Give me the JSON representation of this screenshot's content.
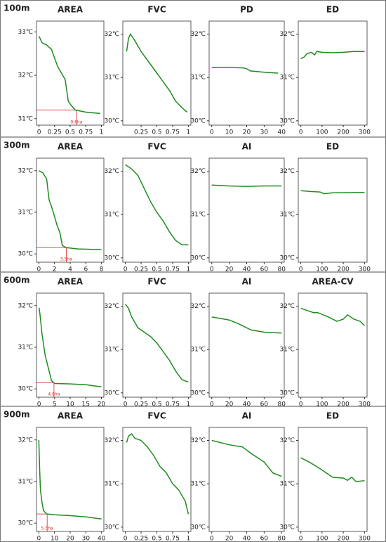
{
  "rows": [
    "100m",
    "300m",
    "600m",
    "900m"
  ],
  "chart_data": [
    {
      "type": "line",
      "title": "AREA",
      "x": [
        0,
        0.05,
        0.12,
        0.2,
        0.3,
        0.42,
        0.47,
        0.52,
        0.58,
        0.75,
        0.98
      ],
      "values": [
        32.9,
        32.75,
        32.7,
        32.6,
        32.2,
        31.9,
        31.4,
        31.3,
        31.2,
        31.15,
        31.12
      ],
      "color": "#1e8c1e",
      "xlim": [
        -0.04,
        1.04
      ],
      "ylim": [
        30.85,
        33.25
      ],
      "xticks": [
        0,
        0.25,
        0.5,
        0.75,
        1
      ],
      "yticks": [
        {
          "value": 31,
          "label": "31℃"
        },
        {
          "value": 32,
          "label": "32℃"
        },
        {
          "value": 33,
          "label": "33℃"
        }
      ],
      "annotations": [
        {
          "x": 0.6,
          "y": 31.2,
          "label": "0.6ha",
          "color": "#e02020"
        }
      ]
    },
    {
      "type": "line",
      "title": "FVC",
      "x": [
        0.02,
        0.05,
        0.08,
        0.15,
        0.25,
        0.35,
        0.5,
        0.6,
        0.7,
        0.8,
        0.9,
        0.98
      ],
      "values": [
        31.6,
        31.9,
        32.0,
        31.85,
        31.6,
        31.4,
        31.1,
        30.9,
        30.7,
        30.45,
        30.3,
        30.2
      ],
      "color": "#1e8c1e",
      "xlim": [
        -0.04,
        1.04
      ],
      "ylim": [
        29.9,
        32.3
      ],
      "xticks": [
        0.25,
        0.5,
        0.75,
        1
      ],
      "yticks": [
        {
          "value": 30,
          "label": "30℃"
        },
        {
          "value": 31,
          "label": "31℃"
        },
        {
          "value": 32,
          "label": "32℃"
        }
      ]
    },
    {
      "type": "line",
      "title": "PD",
      "x": [
        0,
        10,
        18,
        20,
        22,
        30,
        38
      ],
      "values": [
        31.23,
        31.23,
        31.22,
        31.2,
        31.15,
        31.12,
        31.1
      ],
      "color": "#1e8c1e",
      "xlim": [
        -1.5,
        41.5
      ],
      "ylim": [
        29.9,
        32.3
      ],
      "xticks": [
        0,
        10,
        20,
        30,
        40
      ],
      "yticks": [
        {
          "value": 30,
          "label": "30℃"
        },
        {
          "value": 31,
          "label": "31℃"
        },
        {
          "value": 32,
          "label": "32℃"
        }
      ]
    },
    {
      "type": "line",
      "title": "ED",
      "x": [
        0,
        15,
        30,
        50,
        65,
        75,
        100,
        150,
        200,
        250,
        300
      ],
      "values": [
        31.43,
        31.47,
        31.55,
        31.58,
        31.52,
        31.6,
        31.58,
        31.57,
        31.58,
        31.6,
        31.6
      ],
      "color": "#1e8c1e",
      "xlim": [
        -12,
        312
      ],
      "ylim": [
        29.9,
        32.3
      ],
      "xticks": [
        0,
        100,
        200,
        300
      ],
      "yticks": [
        {
          "value": 30,
          "label": "30℃"
        },
        {
          "value": 31,
          "label": "31℃"
        },
        {
          "value": 32,
          "label": "32℃"
        }
      ]
    },
    {
      "type": "line",
      "title": "AREA",
      "x": [
        0,
        0.5,
        1,
        1.3,
        1.6,
        2,
        2.3,
        2.7,
        3,
        3.5,
        5,
        8
      ],
      "values": [
        32.0,
        31.95,
        31.8,
        31.3,
        31.15,
        30.9,
        30.7,
        30.5,
        30.2,
        30.15,
        30.12,
        30.1
      ],
      "color": "#1e8c1e",
      "xlim": [
        -0.3,
        8.3
      ],
      "ylim": [
        29.8,
        32.3
      ],
      "xticks": [
        0,
        2,
        4,
        6,
        8
      ],
      "yticks": [
        {
          "value": 30,
          "label": "30℃"
        },
        {
          "value": 31,
          "label": "31℃"
        },
        {
          "value": 32,
          "label": "32℃"
        }
      ],
      "annotations": [
        {
          "x": 3.5,
          "y": 30.15,
          "label": "3.5ha",
          "color": "#e02020"
        }
      ]
    },
    {
      "type": "line",
      "title": "FVC",
      "x": [
        0,
        0.1,
        0.2,
        0.3,
        0.4,
        0.5,
        0.6,
        0.7,
        0.8,
        0.9,
        1
      ],
      "values": [
        32.15,
        32.05,
        31.9,
        31.6,
        31.3,
        31.05,
        30.85,
        30.6,
        30.4,
        30.3,
        30.3
      ],
      "color": "#1e8c1e",
      "xlim": [
        -0.04,
        1.04
      ],
      "ylim": [
        29.9,
        32.3
      ],
      "xticks": [
        0,
        0.25,
        0.5,
        0.75,
        1
      ],
      "yticks": [
        {
          "value": 30,
          "label": "30℃"
        },
        {
          "value": 31,
          "label": "31℃"
        },
        {
          "value": 32,
          "label": "32℃"
        }
      ]
    },
    {
      "type": "line",
      "title": "AI",
      "x": [
        0,
        20,
        40,
        60,
        80
      ],
      "values": [
        31.68,
        31.66,
        31.65,
        31.66,
        31.66
      ],
      "color": "#1e8c1e",
      "xlim": [
        -3,
        83
      ],
      "ylim": [
        29.9,
        32.3
      ],
      "xticks": [
        0,
        20,
        40,
        60,
        80
      ],
      "yticks": [
        {
          "value": 30,
          "label": "30℃"
        },
        {
          "value": 31,
          "label": "31℃"
        },
        {
          "value": 32,
          "label": "32℃"
        }
      ]
    },
    {
      "type": "line",
      "title": "ED",
      "x": [
        0,
        50,
        90,
        110,
        150,
        300
      ],
      "values": [
        31.55,
        31.53,
        31.52,
        31.48,
        31.5,
        31.51
      ],
      "color": "#1e8c1e",
      "xlim": [
        -12,
        312
      ],
      "ylim": [
        29.9,
        32.3
      ],
      "xticks": [
        0,
        100,
        200,
        300
      ],
      "yticks": [
        {
          "value": 30,
          "label": "30℃"
        },
        {
          "value": 31,
          "label": "31℃"
        },
        {
          "value": 32,
          "label": "32℃"
        }
      ]
    },
    {
      "type": "line",
      "title": "AREA",
      "x": [
        0,
        0.3,
        1,
        2,
        3,
        4,
        5,
        10,
        15,
        20
      ],
      "values": [
        31.95,
        31.8,
        31.3,
        30.8,
        30.5,
        30.2,
        30.13,
        30.12,
        30.1,
        30.05
      ],
      "color": "#1e8c1e",
      "xlim": [
        -0.8,
        20.8
      ],
      "ylim": [
        29.8,
        32.3
      ],
      "xticks": [
        0,
        5,
        10,
        15,
        20
      ],
      "yticks": [
        {
          "value": 30,
          "label": "30℃"
        },
        {
          "value": 31,
          "label": "31℃"
        },
        {
          "value": 32,
          "label": "32℃"
        }
      ],
      "annotations": [
        {
          "x": 4.8,
          "y": 30.15,
          "label": "4.8ha",
          "color": "#e02020"
        }
      ]
    },
    {
      "type": "line",
      "title": "FVC",
      "x": [
        0,
        0.05,
        0.1,
        0.2,
        0.3,
        0.4,
        0.5,
        0.6,
        0.7,
        0.8,
        0.9,
        1
      ],
      "values": [
        32.05,
        31.95,
        31.75,
        31.5,
        31.4,
        31.3,
        31.15,
        30.95,
        30.75,
        30.5,
        30.3,
        30.25
      ],
      "color": "#1e8c1e",
      "xlim": [
        -0.04,
        1.04
      ],
      "ylim": [
        29.9,
        32.3
      ],
      "xticks": [
        0,
        0.25,
        0.5,
        0.75,
        1
      ],
      "yticks": [
        {
          "value": 30,
          "label": "30℃"
        },
        {
          "value": 31,
          "label": "31℃"
        },
        {
          "value": 32,
          "label": "32℃"
        }
      ]
    },
    {
      "type": "line",
      "title": "AI",
      "x": [
        0,
        20,
        30,
        45,
        60,
        80
      ],
      "values": [
        31.75,
        31.68,
        31.6,
        31.45,
        31.4,
        31.38
      ],
      "color": "#1e8c1e",
      "xlim": [
        -3,
        83
      ],
      "ylim": [
        29.9,
        32.3
      ],
      "xticks": [
        0,
        20,
        40,
        60,
        80
      ],
      "yticks": [
        {
          "value": 30,
          "label": "30℃"
        },
        {
          "value": 31,
          "label": "31℃"
        },
        {
          "value": 32,
          "label": "32℃"
        }
      ]
    },
    {
      "type": "line",
      "title": "AREA-CV",
      "x": [
        0,
        30,
        60,
        80,
        130,
        170,
        200,
        220,
        250,
        280,
        300
      ],
      "values": [
        31.95,
        31.9,
        31.85,
        31.85,
        31.75,
        31.65,
        31.7,
        31.8,
        31.7,
        31.65,
        31.55
      ],
      "color": "#1e8c1e",
      "xlim": [
        -12,
        312
      ],
      "ylim": [
        29.9,
        32.3
      ],
      "xticks": [
        0,
        100,
        200,
        300
      ],
      "yticks": [
        {
          "value": 30,
          "label": "30℃"
        },
        {
          "value": 31,
          "label": "31℃"
        },
        {
          "value": 32,
          "label": "32℃"
        }
      ]
    },
    {
      "type": "line",
      "title": "AREA",
      "x": [
        0,
        0.5,
        1,
        2,
        3,
        5,
        10,
        20,
        30,
        40
      ],
      "values": [
        32.0,
        31.3,
        30.8,
        30.5,
        30.3,
        30.22,
        30.2,
        30.18,
        30.15,
        30.1
      ],
      "color": "#1e8c1e",
      "xlim": [
        -1.5,
        41.5
      ],
      "ylim": [
        29.8,
        32.3
      ],
      "xticks": [
        0,
        10,
        20,
        30,
        40
      ],
      "yticks": [
        {
          "value": 30,
          "label": "30℃"
        },
        {
          "value": 31,
          "label": "31℃"
        },
        {
          "value": 32,
          "label": "32℃"
        }
      ],
      "annotations": [
        {
          "x": 5.3,
          "y": 30.22,
          "label": "5.3ha",
          "color": "#e02020"
        }
      ]
    },
    {
      "type": "line",
      "title": "FVC",
      "x": [
        0.02,
        0.05,
        0.1,
        0.15,
        0.25,
        0.35,
        0.45,
        0.55,
        0.65,
        0.75,
        0.85,
        0.95,
        1
      ],
      "values": [
        31.95,
        32.1,
        32.15,
        32.05,
        32.0,
        31.85,
        31.65,
        31.4,
        31.25,
        31.0,
        30.85,
        30.6,
        30.3
      ],
      "color": "#1e8c1e",
      "xlim": [
        -0.04,
        1.04
      ],
      "ylim": [
        29.9,
        32.3
      ],
      "xticks": [
        0,
        0.25,
        0.5,
        0.75,
        1
      ],
      "yticks": [
        {
          "value": 30,
          "label": "30℃"
        },
        {
          "value": 31,
          "label": "31℃"
        },
        {
          "value": 32,
          "label": "32℃"
        }
      ]
    },
    {
      "type": "line",
      "title": "AI",
      "x": [
        0,
        20,
        35,
        45,
        60,
        70,
        80
      ],
      "values": [
        32.0,
        31.9,
        31.85,
        31.7,
        31.5,
        31.25,
        31.17
      ],
      "color": "#1e8c1e",
      "xlim": [
        -3,
        83
      ],
      "ylim": [
        29.9,
        32.3
      ],
      "xticks": [
        0,
        20,
        40,
        60,
        80
      ],
      "yticks": [
        {
          "value": 30,
          "label": "30℃"
        },
        {
          "value": 31,
          "label": "31℃"
        },
        {
          "value": 32,
          "label": "32℃"
        }
      ]
    },
    {
      "type": "line",
      "title": "ED",
      "x": [
        0,
        40,
        90,
        150,
        200,
        220,
        240,
        260,
        300
      ],
      "values": [
        31.6,
        31.5,
        31.35,
        31.15,
        31.13,
        31.08,
        31.15,
        31.05,
        31.07
      ],
      "color": "#1e8c1e",
      "xlim": [
        -12,
        312
      ],
      "ylim": [
        29.9,
        32.3
      ],
      "xticks": [
        0,
        100,
        200,
        300
      ],
      "yticks": [
        {
          "value": 30,
          "label": "30℃"
        },
        {
          "value": 31,
          "label": "31℃"
        },
        {
          "value": 32,
          "label": "32℃"
        }
      ]
    }
  ]
}
